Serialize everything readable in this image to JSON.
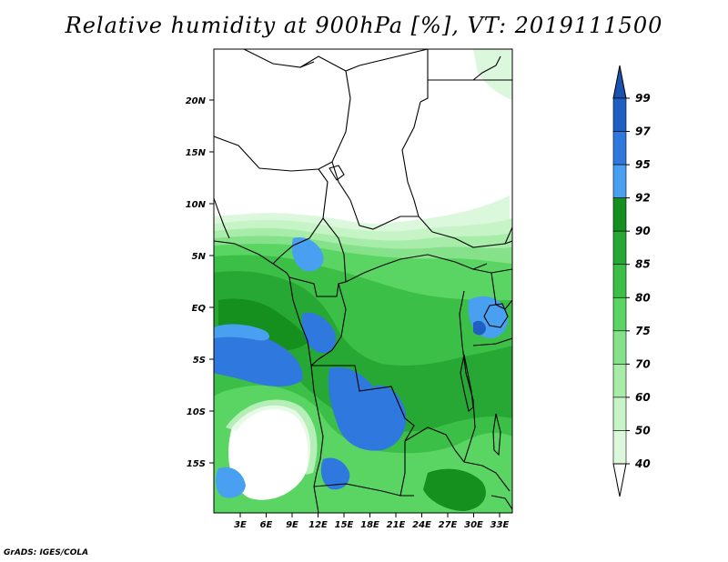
{
  "title": "Relative humidity at 900hPa [%], VT: 2019111500",
  "credit": "GrADS: IGES/COLA",
  "map": {
    "lat_labels": [
      "20N",
      "15N",
      "10N",
      "5N",
      "EQ",
      "5S",
      "10S",
      "15S"
    ],
    "lon_labels": [
      "3E",
      "6E",
      "9E",
      "12E",
      "15E",
      "18E",
      "21E",
      "24E",
      "27E",
      "30E",
      "33E"
    ]
  },
  "colorbar": {
    "levels": [
      "99",
      "97",
      "95",
      "92",
      "90",
      "85",
      "80",
      "75",
      "70",
      "60",
      "50",
      "40"
    ],
    "colors": [
      "#1f5fc4",
      "#2f78de",
      "#4aa0f0",
      "#158f1e",
      "#27a834",
      "#3bbf46",
      "#5ad563",
      "#86e28a",
      "#a8eca9",
      "#c6f4c6",
      "#dcf8dc",
      "#f0fcef"
    ],
    "over_color": "#1a52b0",
    "under_color": "#ffffff"
  }
}
